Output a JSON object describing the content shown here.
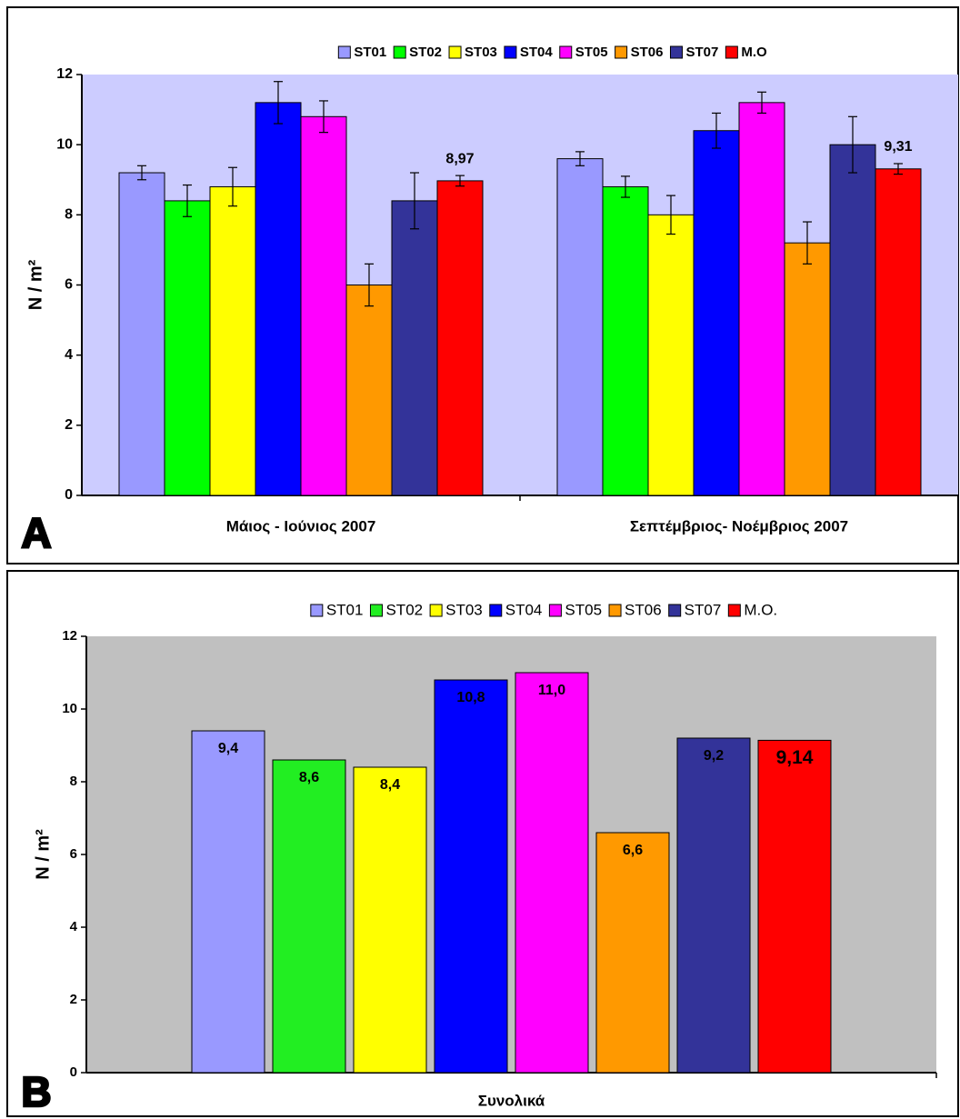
{
  "chart_data": [
    {
      "type": "bar",
      "label": "A",
      "ylabel": "N / m²",
      "categories": [
        "Μάιος - Ιούνιος 2007",
        "Σεπτέμβριος- Νοέμβριος 2007"
      ],
      "ylim": [
        0,
        12
      ],
      "yticks": [
        0,
        2,
        4,
        6,
        8,
        10,
        12
      ],
      "grid": false,
      "legend": "top",
      "series": [
        {
          "name": "ST01",
          "color": "#9999ff",
          "values": [
            9.2,
            9.6
          ],
          "errors": [
            0.2,
            0.2
          ]
        },
        {
          "name": "ST02",
          "color": "#00ff00",
          "values": [
            8.4,
            8.8
          ],
          "errors": [
            0.45,
            0.3
          ]
        },
        {
          "name": "ST03",
          "color": "#ffff00",
          "values": [
            8.8,
            8.0
          ],
          "errors": [
            0.55,
            0.55
          ]
        },
        {
          "name": "ST04",
          "color": "#0000ff",
          "values": [
            11.2,
            10.4
          ],
          "errors": [
            0.6,
            0.5
          ]
        },
        {
          "name": "ST05",
          "color": "#ff00ff",
          "values": [
            10.8,
            11.2
          ],
          "errors": [
            0.45,
            0.3
          ]
        },
        {
          "name": "ST06",
          "color": "#ff9900",
          "values": [
            6.0,
            7.2
          ],
          "errors": [
            0.6,
            0.6
          ]
        },
        {
          "name": "ST07",
          "color": "#333399",
          "values": [
            8.4,
            10.0
          ],
          "errors": [
            0.8,
            0.8
          ]
        },
        {
          "name": "M.O",
          "color": "#ff0000",
          "values": [
            8.97,
            9.31
          ],
          "errors": [
            0.15,
            0.15
          ],
          "value_labels": [
            "8,97",
            "9,31"
          ]
        }
      ]
    },
    {
      "type": "bar",
      "label": "B",
      "ylabel": "N / m²",
      "categories": [
        "Συνολικά"
      ],
      "ylim": [
        0,
        12
      ],
      "yticks": [
        0,
        2,
        4,
        6,
        8,
        10,
        12
      ],
      "grid": false,
      "legend": "top",
      "series": [
        {
          "name": "ST01",
          "color": "#9999ff",
          "values": [
            9.4
          ],
          "value_labels": [
            "9,4"
          ]
        },
        {
          "name": "ST02",
          "color": "#22ee22",
          "values": [
            8.6
          ],
          "value_labels": [
            "8,6"
          ]
        },
        {
          "name": "ST03",
          "color": "#ffff00",
          "values": [
            8.4
          ],
          "value_labels": [
            "8,4"
          ]
        },
        {
          "name": "ST04",
          "color": "#0000ff",
          "values": [
            10.8
          ],
          "value_labels": [
            "10,8"
          ]
        },
        {
          "name": "ST05",
          "color": "#ff00ff",
          "values": [
            11.0
          ],
          "value_labels": [
            "11,0"
          ]
        },
        {
          "name": "ST06",
          "color": "#ff9900",
          "values": [
            6.6
          ],
          "value_labels": [
            "6,6"
          ]
        },
        {
          "name": "ST07",
          "color": "#333399",
          "values": [
            9.2
          ],
          "value_labels": [
            "9,2"
          ]
        },
        {
          "name": "M.O.",
          "color": "#ff0000",
          "values": [
            9.14
          ],
          "value_labels": [
            "9,14"
          ]
        }
      ]
    }
  ]
}
